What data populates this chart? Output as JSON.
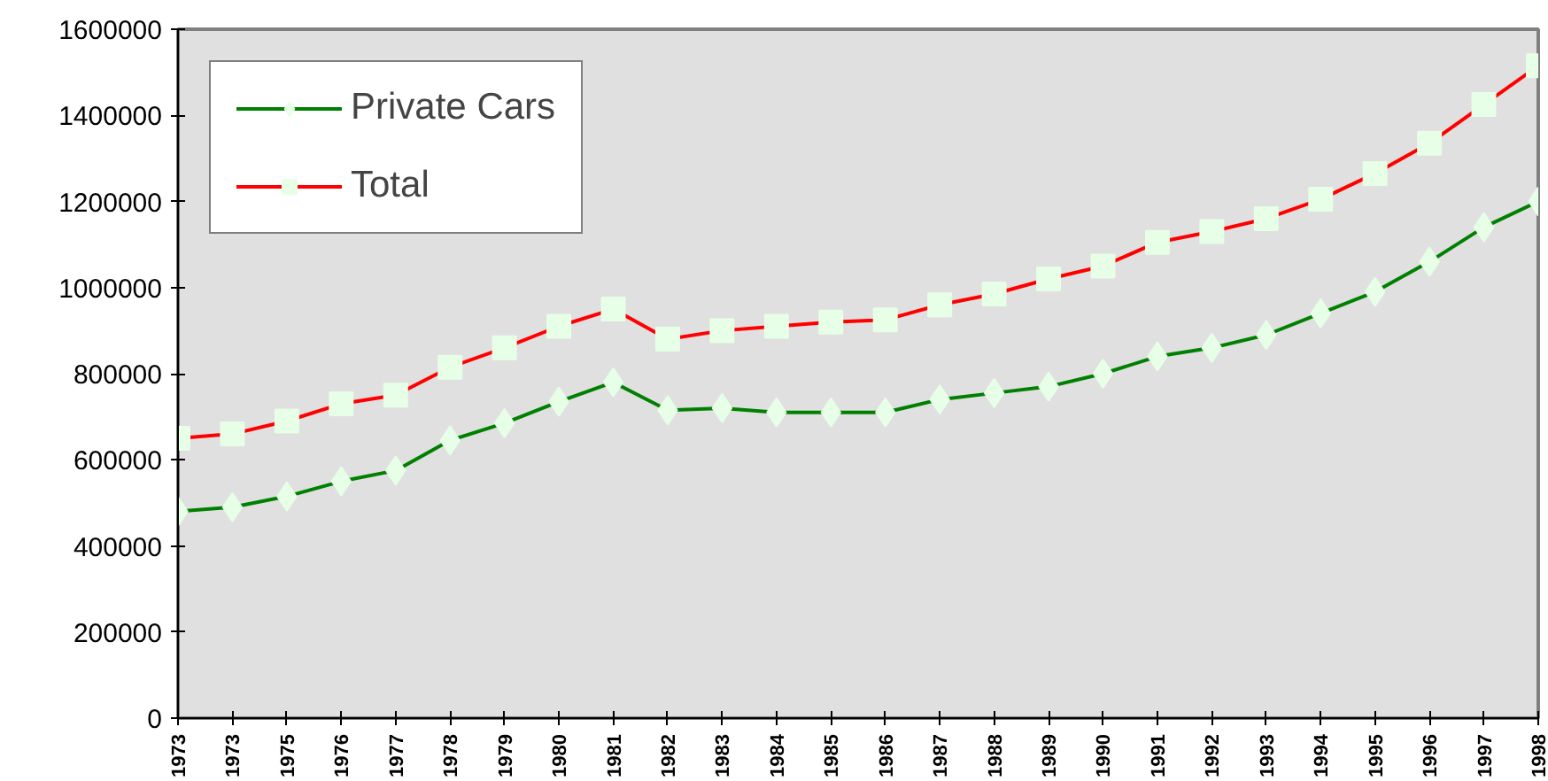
{
  "chart_data": {
    "type": "line",
    "categories": [
      "1973",
      "1973",
      "1975",
      "1976",
      "1977",
      "1978",
      "1979",
      "1980",
      "1981",
      "1982",
      "1983",
      "1984",
      "1985",
      "1986",
      "1987",
      "1988",
      "1989",
      "1990",
      "1991",
      "1992",
      "1993",
      "1994",
      "1995",
      "1996",
      "1997",
      "1998"
    ],
    "series": [
      {
        "name": "Private Cars",
        "color": "#008000",
        "marker": "diamond",
        "values": [
          480000,
          490000,
          515000,
          550000,
          575000,
          645000,
          685000,
          735000,
          780000,
          715000,
          720000,
          710000,
          710000,
          710000,
          740000,
          755000,
          770000,
          800000,
          840000,
          860000,
          890000,
          940000,
          990000,
          1060000,
          1140000,
          1200000
        ]
      },
      {
        "name": "Total",
        "color": "#ff0000",
        "marker": "square",
        "values": [
          650000,
          660000,
          690000,
          730000,
          750000,
          815000,
          860000,
          910000,
          950000,
          880000,
          900000,
          910000,
          920000,
          925000,
          960000,
          985000,
          1020000,
          1050000,
          1105000,
          1130000,
          1160000,
          1205000,
          1265000,
          1335000,
          1425000,
          1515000
        ]
      }
    ],
    "ylim": [
      0,
      1600000
    ],
    "yticks": [
      0,
      200000,
      400000,
      600000,
      800000,
      1000000,
      1200000,
      1400000,
      1600000
    ],
    "grid": false,
    "legend": "top left",
    "line_style": "solid"
  }
}
